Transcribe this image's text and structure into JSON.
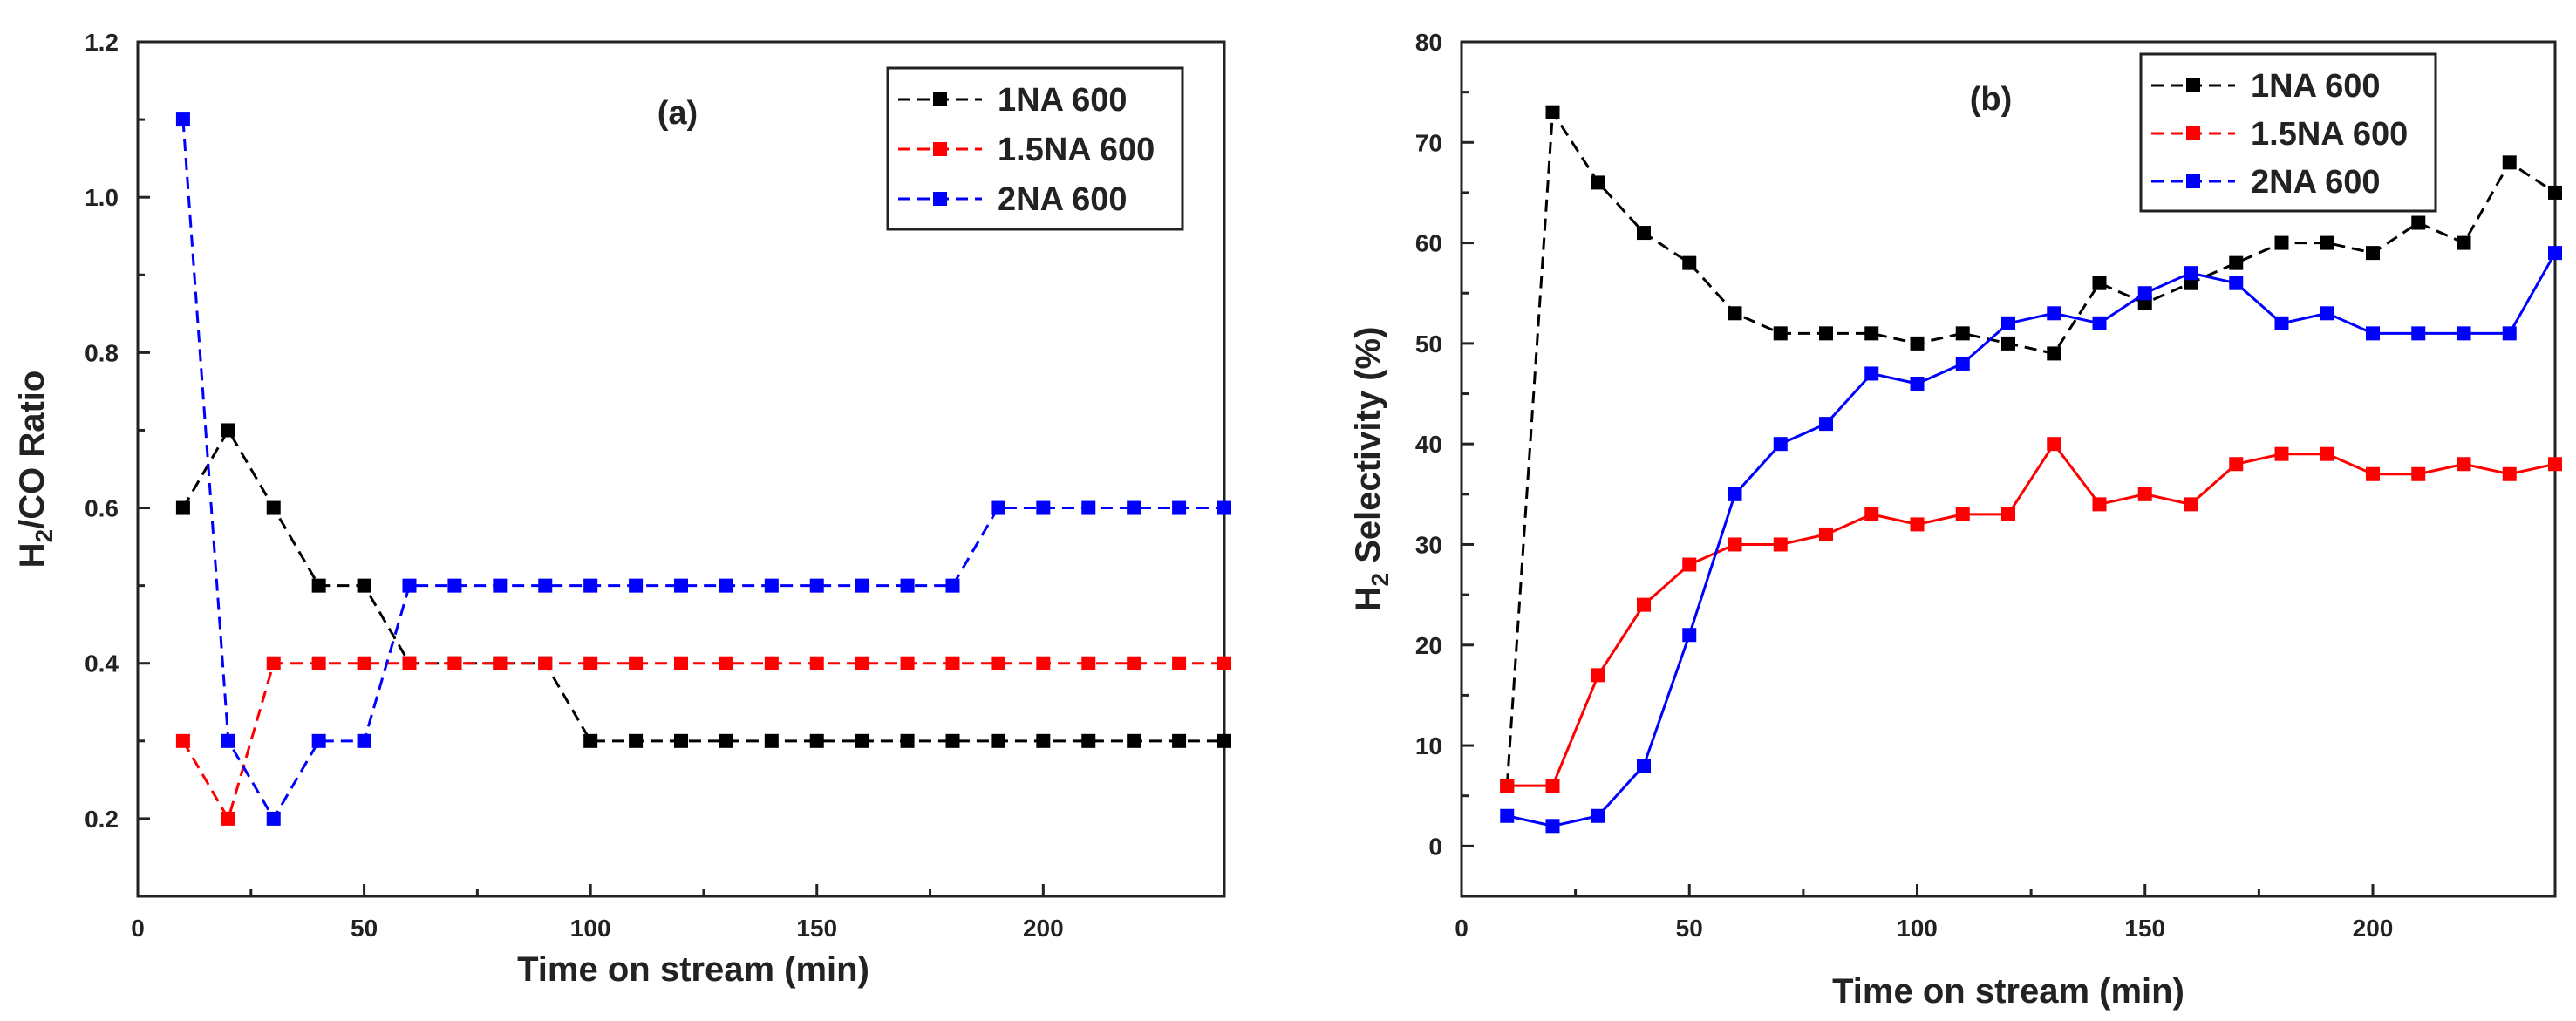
{
  "chart_data": [
    {
      "type": "line",
      "panel_label": "(a)",
      "title": "",
      "xlabel": "Time on stream (min)",
      "ylabel_main": "H",
      "ylabel_sub": "2",
      "ylabel_rest": "/CO Ratio",
      "xlim": [
        0,
        240
      ],
      "ylim": [
        0.1,
        1.2
      ],
      "xticks": [
        0,
        50,
        100,
        150,
        200
      ],
      "xtick_labels": [
        "0",
        "50",
        "100",
        "150",
        "200"
      ],
      "yticks": [
        0.2,
        0.4,
        0.6,
        0.8,
        1.0,
        1.2
      ],
      "ytick_labels": [
        "0.2",
        "0.4",
        "0.6",
        "0.8",
        "1.0",
        "1.2"
      ],
      "grid": false,
      "legend_position": "top-right",
      "x": [
        10,
        20,
        30,
        40,
        50,
        60,
        70,
        80,
        90,
        100,
        110,
        120,
        130,
        140,
        150,
        160,
        170,
        180,
        190,
        200,
        210,
        220,
        230,
        240
      ],
      "series": [
        {
          "name": "1NA 600",
          "color": "#000000",
          "dashed": true,
          "values": [
            0.6,
            0.7,
            0.6,
            0.5,
            0.5,
            0.4,
            0.4,
            0.4,
            0.4,
            0.3,
            0.3,
            0.3,
            0.3,
            0.3,
            0.3,
            0.3,
            0.3,
            0.3,
            0.3,
            0.3,
            0.3,
            0.3,
            0.3,
            0.3
          ]
        },
        {
          "name": "1.5NA 600",
          "color": "#ff0000",
          "dashed": true,
          "values": [
            0.3,
            0.2,
            0.4,
            0.4,
            0.4,
            0.4,
            0.4,
            0.4,
            0.4,
            0.4,
            0.4,
            0.4,
            0.4,
            0.4,
            0.4,
            0.4,
            0.4,
            0.4,
            0.4,
            0.4,
            0.4,
            0.4,
            0.4,
            0.4
          ]
        },
        {
          "name": "2NA 600",
          "color": "#0000ff",
          "dashed": true,
          "values": [
            1.1,
            0.3,
            0.2,
            0.3,
            0.3,
            0.5,
            0.5,
            0.5,
            0.5,
            0.5,
            0.5,
            0.5,
            0.5,
            0.5,
            0.5,
            0.5,
            0.5,
            0.5,
            0.6,
            0.6,
            0.6,
            0.6,
            0.6,
            0.6
          ]
        }
      ]
    },
    {
      "type": "line",
      "panel_label": "(b)",
      "title": "",
      "xlabel": "Time on stream (min)",
      "ylabel_main": "H",
      "ylabel_sub": "2",
      "ylabel_rest": " Selectivity (%)",
      "xlim": [
        0,
        240
      ],
      "ylim": [
        -5,
        80
      ],
      "xticks": [
        0,
        50,
        100,
        150,
        200
      ],
      "xtick_labels": [
        "0",
        "50",
        "100",
        "150",
        "200"
      ],
      "yticks": [
        0,
        10,
        20,
        30,
        40,
        50,
        60,
        70,
        80
      ],
      "ytick_labels": [
        "0",
        "10",
        "20",
        "30",
        "40",
        "50",
        "60",
        "70",
        "80"
      ],
      "grid": false,
      "legend_position": "top-right",
      "x": [
        10,
        20,
        30,
        40,
        50,
        60,
        70,
        80,
        90,
        100,
        110,
        120,
        130,
        140,
        150,
        160,
        170,
        180,
        190,
        200,
        210,
        220,
        230,
        240
      ],
      "series": [
        {
          "name": "1NA 600",
          "color": "#000000",
          "dashed": true,
          "values": [
            6,
            73,
            66,
            61,
            58,
            53,
            51,
            51,
            51,
            50,
            51,
            50,
            49,
            56,
            54,
            56,
            58,
            60,
            60,
            59,
            62,
            60,
            68,
            65
          ]
        },
        {
          "name": "1.5NA 600",
          "color": "#ff0000",
          "dashed": false,
          "values": [
            6,
            6,
            17,
            24,
            28,
            30,
            30,
            31,
            33,
            32,
            33,
            33,
            40,
            34,
            35,
            34,
            38,
            39,
            39,
            37,
            37,
            38,
            37,
            38
          ]
        },
        {
          "name": "2NA 600",
          "color": "#0000ff",
          "dashed": false,
          "values": [
            3,
            2,
            3,
            8,
            21,
            35,
            40,
            42,
            47,
            46,
            48,
            52,
            53,
            52,
            55,
            57,
            56,
            52,
            53,
            51,
            51,
            51,
            51,
            59
          ]
        }
      ]
    }
  ]
}
